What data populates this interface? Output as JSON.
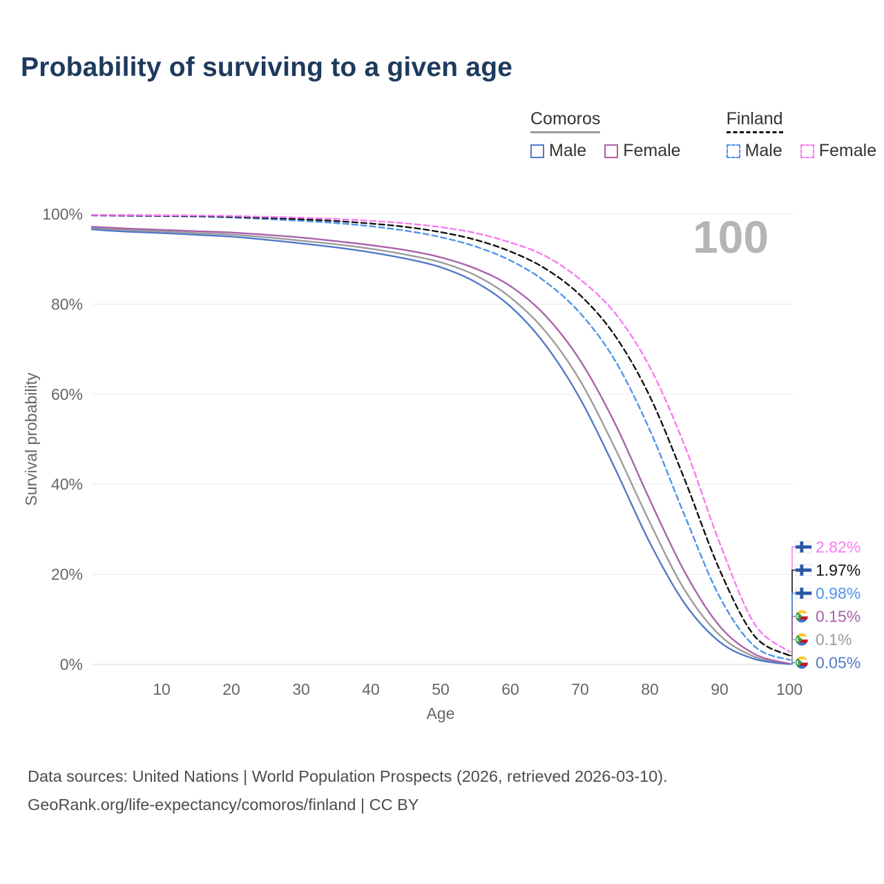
{
  "title": "Probability of surviving to a given age",
  "watermark": "100",
  "legend": {
    "groups": [
      {
        "id": "comoros",
        "label": "Comoros",
        "line_color": "#9b9b9b",
        "dashed": false,
        "items": [
          {
            "id": "comoros-male",
            "label": "Male",
            "color": "#5078c8",
            "dashed": false
          },
          {
            "id": "comoros-female",
            "label": "Female",
            "color": "#a961a9",
            "dashed": false
          }
        ]
      },
      {
        "id": "finland",
        "label": "Finland",
        "line_color": "#111111",
        "dashed": true,
        "items": [
          {
            "id": "finland-male",
            "label": "Male",
            "color": "#4d94ea",
            "dashed": true
          },
          {
            "id": "finland-female",
            "label": "Female",
            "color": "#f879f3",
            "dashed": true
          }
        ]
      }
    ]
  },
  "chart_data": {
    "type": "line",
    "title": "Probability of surviving to a given age",
    "xlabel": "Age",
    "ylabel": "Survival probability",
    "xlim": [
      0,
      100
    ],
    "ylim": [
      0,
      100
    ],
    "grid": "horizontal",
    "legend_position": "top-right",
    "x_ticks": [
      10,
      20,
      30,
      40,
      50,
      60,
      70,
      80,
      90,
      100
    ],
    "y_ticks": [
      0,
      20,
      40,
      60,
      80,
      100
    ],
    "x": [
      0,
      5,
      10,
      15,
      20,
      25,
      30,
      35,
      40,
      45,
      50,
      55,
      60,
      65,
      70,
      75,
      80,
      85,
      90,
      95,
      100
    ],
    "series": [
      {
        "id": "comoros-both",
        "name": "Comoros",
        "color": "#9b9b9b",
        "dash": false,
        "values": [
          96.9,
          96.45,
          96.15,
          95.8,
          95.45,
          94.85,
          94.1,
          93.3,
          92.3,
          91.0,
          89.3,
          86.4,
          81.5,
          74.0,
          63.0,
          48.0,
          31.5,
          16.5,
          6.5,
          1.7,
          0.1
        ]
      },
      {
        "id": "comoros-male",
        "name": "Comoros Male",
        "color": "#5078c8",
        "dash": false,
        "values": [
          96.6,
          96.1,
          95.8,
          95.4,
          95.0,
          94.3,
          93.5,
          92.6,
          91.5,
          90.1,
          88.2,
          84.9,
          79.5,
          71.0,
          59.0,
          43.5,
          27.0,
          13.5,
          5.0,
          1.2,
          0.05
        ]
      },
      {
        "id": "comoros-female",
        "name": "Comoros Female",
        "color": "#a961a9",
        "dash": false,
        "values": [
          97.2,
          96.8,
          96.5,
          96.2,
          95.9,
          95.4,
          94.8,
          94.0,
          93.1,
          92.0,
          90.4,
          87.9,
          84.0,
          77.5,
          67.5,
          53.5,
          36.5,
          20.5,
          8.5,
          2.3,
          0.15
        ]
      },
      {
        "id": "finland-male",
        "name": "Finland Male",
        "color": "#4d94ea",
        "dash": true,
        "values": [
          99.7,
          99.6,
          99.55,
          99.45,
          99.25,
          98.9,
          98.5,
          98.0,
          97.3,
          96.3,
          94.9,
          92.8,
          89.7,
          85.0,
          78.0,
          67.5,
          52.0,
          33.0,
          15.0,
          4.0,
          0.98
        ]
      },
      {
        "id": "finland-both",
        "name": "Finland",
        "color": "#111111",
        "dash": true,
        "values": [
          99.75,
          99.68,
          99.62,
          99.55,
          99.4,
          99.15,
          98.85,
          98.45,
          97.9,
          97.15,
          96.0,
          94.3,
          91.7,
          87.9,
          82.0,
          73.0,
          59.5,
          41.0,
          21.0,
          6.3,
          1.97
        ]
      },
      {
        "id": "finland-female",
        "name": "Finland Female",
        "color": "#f879f3",
        "dash": true,
        "values": [
          99.8,
          99.77,
          99.73,
          99.68,
          99.58,
          99.4,
          99.2,
          98.9,
          98.5,
          97.95,
          97.1,
          95.8,
          93.7,
          90.7,
          85.5,
          78.0,
          66.0,
          48.5,
          27.0,
          9.0,
          2.82
        ]
      }
    ]
  },
  "end_labels": [
    {
      "series": "finland-female",
      "label": "2.82%",
      "color": "#f879f3",
      "flag": "finland"
    },
    {
      "series": "finland-both",
      "label": "1.97%",
      "color": "#111111",
      "flag": "finland"
    },
    {
      "series": "finland-male",
      "label": "0.98%",
      "color": "#4d94ea",
      "flag": "finland"
    },
    {
      "series": "comoros-female",
      "label": "0.15%",
      "color": "#a961a9",
      "flag": "comoros"
    },
    {
      "series": "comoros-both",
      "label": "0.1%",
      "color": "#9b9b9b",
      "flag": "comoros"
    },
    {
      "series": "comoros-male",
      "label": "0.05%",
      "color": "#5078c8",
      "flag": "comoros"
    }
  ],
  "footer": {
    "line1": "Data sources: United Nations | World Population Prospects (2026, retrieved 2026-03-10).",
    "line2": "GeoRank.org/life-expectancy/comoros/finland | CC BY"
  }
}
